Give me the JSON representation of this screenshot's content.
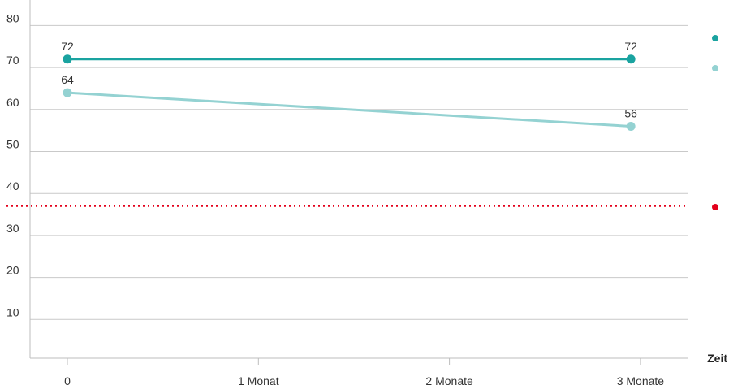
{
  "chart_data": {
    "type": "line",
    "x": [
      "0",
      "1 Monat",
      "2 Monate",
      "3 Monate"
    ],
    "xlabel": "Zeit",
    "ylabel": "",
    "yticks": [
      10,
      20,
      30,
      40,
      50,
      60,
      70,
      80
    ],
    "ylim": [
      0,
      85
    ],
    "grid": true,
    "series": [
      {
        "color": "#1aa3a0",
        "points": [
          {
            "x": 0,
            "y": 72,
            "label": "72"
          },
          {
            "x": 2.95,
            "y": 72,
            "label": "72"
          }
        ]
      },
      {
        "color": "#94d2d2",
        "points": [
          {
            "x": 0,
            "y": 64,
            "label": "64"
          },
          {
            "x": 2.95,
            "y": 56,
            "label": "56"
          }
        ]
      }
    ],
    "reference_line": {
      "y": 37,
      "color": "#e3001b",
      "style": "dotted"
    },
    "legend": {
      "placement": "right",
      "markers": [
        {
          "color": "#1aa3a0"
        },
        {
          "color": "#94d2d2"
        },
        {
          "color": "#e3001b"
        }
      ]
    }
  }
}
